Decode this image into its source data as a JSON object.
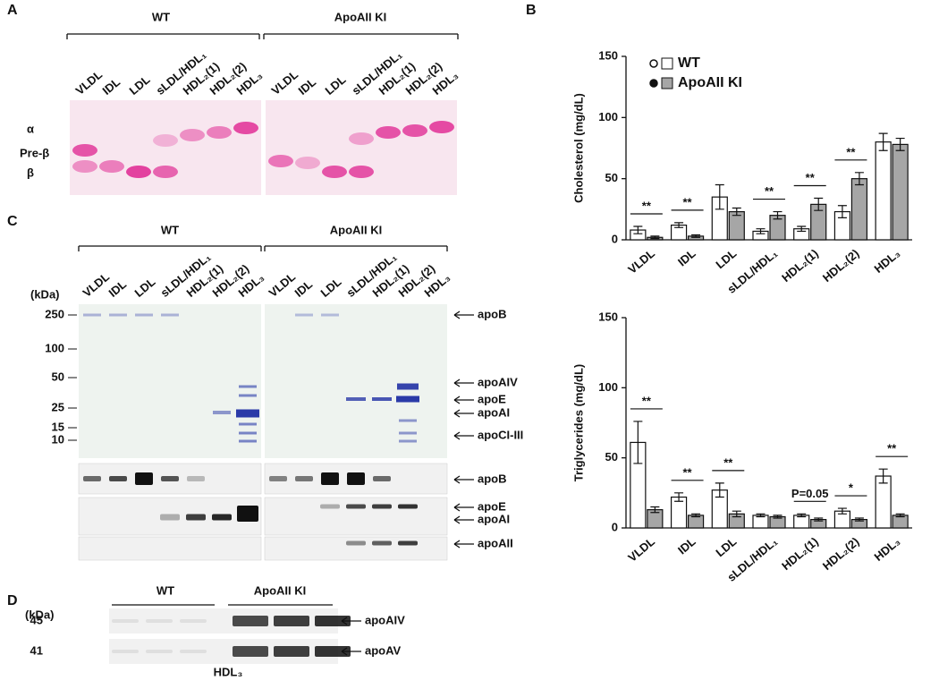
{
  "panel_labels": [
    "A",
    "B",
    "C",
    "D"
  ],
  "panel_a": {
    "groups": [
      "WT",
      "ApoAII KI"
    ],
    "lanes": [
      "VLDL",
      "IDL",
      "LDL",
      "sLDL/HDL₁",
      "HDL₂(1)",
      "HDL₂(2)",
      "HDL₃"
    ],
    "bands": [
      "α",
      "Pre-β",
      "β"
    ]
  },
  "panel_c": {
    "groups": [
      "WT",
      "ApoAII KI"
    ],
    "lanes": [
      "VLDL",
      "IDL",
      "LDL",
      "sLDL/HDL₁",
      "HDL₂(1)",
      "HDL₂(2)",
      "HDL₃"
    ],
    "unit": "(kDa)",
    "markers": [
      "250",
      "100",
      "50",
      "25",
      "15",
      "10"
    ],
    "gel_labels": [
      "apoB",
      "apoAIV",
      "apoE",
      "apoAI",
      "apoCI-III"
    ],
    "blot_labels": [
      "apoB",
      "apoE",
      "apoAI",
      "apoAII"
    ]
  },
  "panel_d": {
    "unit": "(kDa)",
    "groups": [
      "WT",
      "ApoAII KI"
    ],
    "rows": [
      {
        "kda": "45",
        "label": "apoAIV"
      },
      {
        "kda": "41",
        "label": "apoAV"
      }
    ],
    "fraction": "HDL₃"
  },
  "chart_data": [
    {
      "type": "bar",
      "y_label": "Cholesterol (mg/dL)",
      "categories": [
        "VLDL",
        "IDL",
        "LDL",
        "sLDL/HDL₁",
        "HDL₂(1)",
        "HDL₂(2)",
        "HDL₃"
      ],
      "series": [
        {
          "name": "WT",
          "color": "#ffffff",
          "values": [
            8,
            12,
            35,
            7,
            9,
            23,
            80
          ],
          "errors": [
            3,
            2,
            10,
            2,
            2,
            5,
            7
          ]
        },
        {
          "name": "ApoAII KI",
          "color": "#a6a6a6",
          "values": [
            2,
            3,
            23,
            20,
            29,
            50,
            78
          ],
          "errors": [
            1,
            1,
            3,
            3,
            5,
            5,
            5
          ]
        }
      ],
      "significance": [
        "**",
        "**",
        null,
        "**",
        "**",
        "**",
        null
      ],
      "ylim": [
        0,
        150
      ],
      "yticks": [
        0,
        50,
        100,
        150
      ],
      "legend": "upper left"
    },
    {
      "type": "bar",
      "y_label": "Triglycerides (mg/dL)",
      "categories": [
        "VLDL",
        "IDL",
        "LDL",
        "sLDL/HDL₁",
        "HDL₂(1)",
        "HDL₂(2)",
        "HDL₃"
      ],
      "series": [
        {
          "name": "WT",
          "color": "#ffffff",
          "values": [
            61,
            22,
            27,
            9,
            9,
            12,
            37
          ],
          "errors": [
            15,
            3,
            5,
            1,
            1,
            2,
            5
          ]
        },
        {
          "name": "ApoAII KI",
          "color": "#a6a6a6",
          "values": [
            13,
            9,
            10,
            8,
            6,
            6,
            9
          ],
          "errors": [
            2,
            1,
            2,
            1,
            1,
            1,
            1
          ]
        }
      ],
      "significance": [
        "**",
        "**",
        "**",
        null,
        "P=0.05",
        "*",
        "**"
      ],
      "ylim": [
        0,
        150
      ],
      "yticks": [
        0,
        50,
        100,
        150
      ]
    }
  ]
}
